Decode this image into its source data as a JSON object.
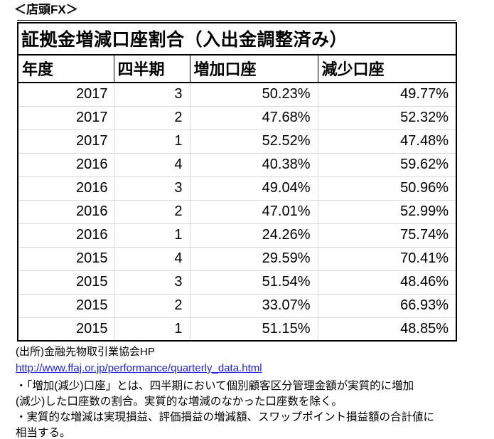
{
  "heading": "＜店頭FX＞",
  "table": {
    "title": "証拠金増減口座割合（入出金調整済み）",
    "columns": [
      "年度",
      "四半期",
      "増加口座",
      "減少口座"
    ],
    "rows": [
      [
        "2017",
        "3",
        "50.23%",
        "49.77%"
      ],
      [
        "2017",
        "2",
        "47.68%",
        "52.32%"
      ],
      [
        "2017",
        "1",
        "52.52%",
        "47.48%"
      ],
      [
        "2016",
        "4",
        "40.38%",
        "59.62%"
      ],
      [
        "2016",
        "3",
        "49.04%",
        "50.96%"
      ],
      [
        "2016",
        "2",
        "47.01%",
        "52.99%"
      ],
      [
        "2016",
        "1",
        "24.26%",
        "75.74%"
      ],
      [
        "2015",
        "4",
        "29.59%",
        "70.41%"
      ],
      [
        "2015",
        "3",
        "51.54%",
        "48.46%"
      ],
      [
        "2015",
        "2",
        "33.07%",
        "66.93%"
      ],
      [
        "2015",
        "1",
        "51.15%",
        "48.85%"
      ]
    ]
  },
  "footer": {
    "source": "(出所)金融先物取引業協会HP",
    "link_text": "http://www.ffaj.or.jp/performance/quarterly_data.html",
    "notes": [
      "・「増加(減少)口座」とは、四半期において個別顧客区分管理金額が実質的に増加",
      "(減少)した口座数の割合。実質的な増減のなかった口座数を除く。",
      "・実質的な増減は実現損益、評価損益の増減額、スワップポイント損益額の合計値に",
      "相当する。"
    ]
  },
  "colors": {
    "link": "#2020e0",
    "grid_line": "#d9d9d9",
    "border": "#000000",
    "text": "#000000",
    "background": "#ffffff"
  }
}
